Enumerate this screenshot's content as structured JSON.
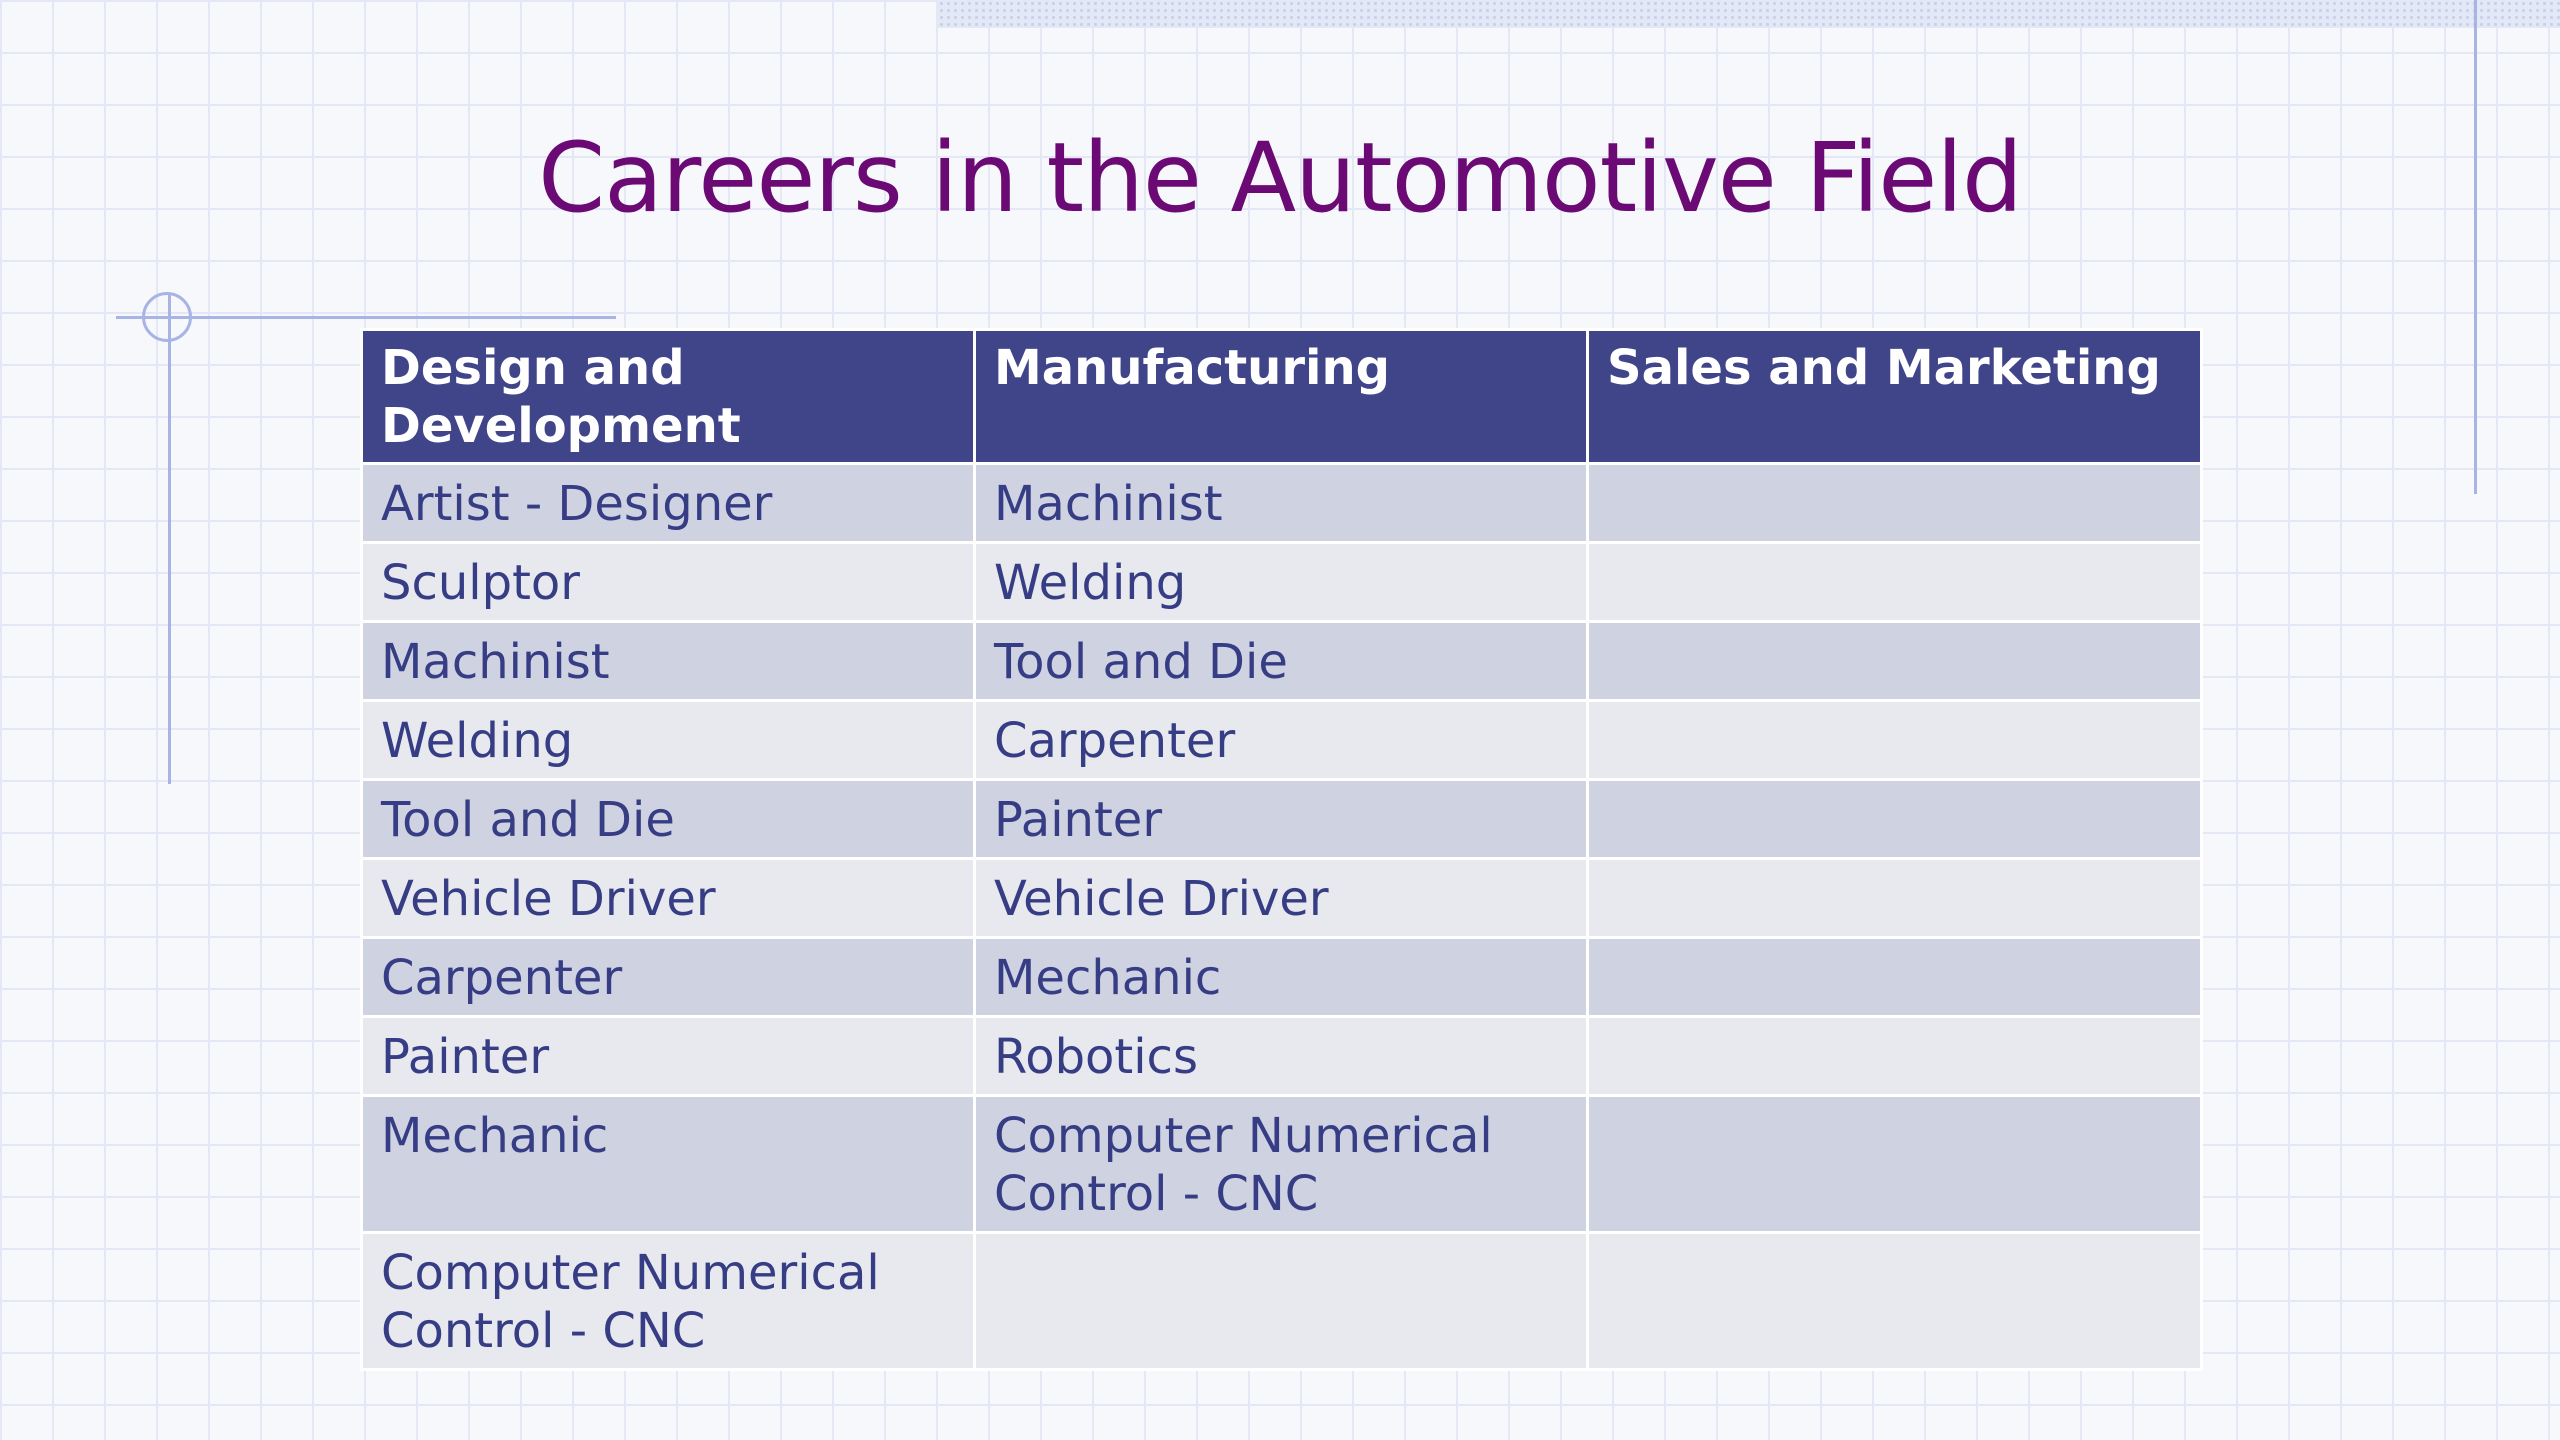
{
  "slide": {
    "title": "Careers in the Automotive Field"
  },
  "table": {
    "headers": [
      "Design and Development",
      "Manufacturing",
      "Sales and Marketing"
    ],
    "rows": [
      [
        "Artist - Designer",
        "Machinist",
        ""
      ],
      [
        "Sculptor",
        "Welding",
        ""
      ],
      [
        "Machinist",
        "Tool and Die",
        ""
      ],
      [
        "Welding",
        "Carpenter",
        ""
      ],
      [
        "Tool and Die",
        "Painter",
        ""
      ],
      [
        "Vehicle Driver",
        "Vehicle Driver",
        ""
      ],
      [
        "Carpenter",
        "Mechanic",
        ""
      ],
      [
        "Painter",
        "Robotics",
        ""
      ],
      [
        "Mechanic",
        "Computer Numerical Control - CNC",
        ""
      ],
      [
        "Computer Numerical Control - CNC",
        "",
        ""
      ]
    ]
  },
  "colors": {
    "title": "#6b0a74",
    "header_bg": "#40458a",
    "header_text": "#ffffff",
    "row_odd": "#cfd2e1",
    "row_even": "#e8e9ef",
    "cell_text": "#363d84"
  }
}
